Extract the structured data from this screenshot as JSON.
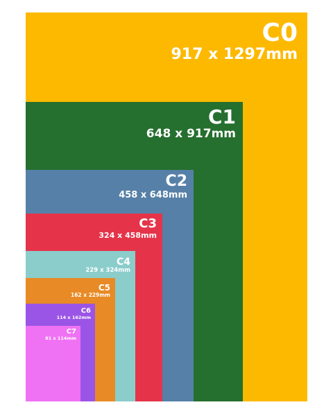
{
  "sheets": [
    {
      "name": "C0",
      "dimensions": "917 x 1297mm",
      "color": "#FDB900"
    },
    {
      "name": "C1",
      "dimensions": "648 x 917mm",
      "color": "#256F2F"
    },
    {
      "name": "C2",
      "dimensions": "458 x 648mm",
      "color": "#5680A7"
    },
    {
      "name": "C3",
      "dimensions": "324 x 458mm",
      "color": "#E5344A"
    },
    {
      "name": "C4",
      "dimensions": "229 x 324mm",
      "color": "#8BCDCB"
    },
    {
      "name": "C5",
      "dimensions": "162 x 229mm",
      "color": "#E88A25"
    },
    {
      "name": "C6",
      "dimensions": "114 x 162mm",
      "color": "#9B55E6"
    },
    {
      "name": "C7",
      "dimensions": "81 x 114mm",
      "color": "#F072F4"
    }
  ]
}
